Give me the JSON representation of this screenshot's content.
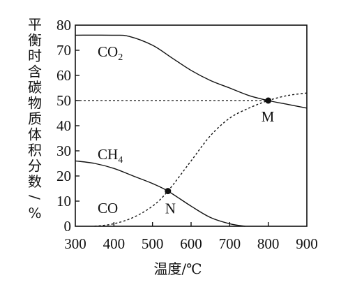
{
  "chart_data": {
    "type": "line",
    "xlabel": "温度/℃",
    "ylabel": "平衡时含碳物质体积分数/%",
    "xlim": [
      300,
      900
    ],
    "ylim": [
      0,
      80
    ],
    "x_ticks": [
      "300",
      "400",
      "500",
      "600",
      "700",
      "800",
      "900"
    ],
    "y_ticks": [
      "0",
      "10",
      "20",
      "30",
      "40",
      "50",
      "60",
      "70",
      "80"
    ],
    "grid": false,
    "series": [
      {
        "name": "CO2",
        "style": "solid",
        "x": [
          300,
          400,
          440,
          500,
          550,
          600,
          650,
          700,
          750,
          800,
          850,
          900
        ],
        "y": [
          76,
          76,
          75.5,
          72,
          67,
          62,
          58,
          55,
          52,
          50,
          48.5,
          47
        ]
      },
      {
        "name": "CH4",
        "style": "solid",
        "x": [
          300,
          350,
          400,
          450,
          500,
          540,
          600,
          650,
          700,
          740
        ],
        "y": [
          26,
          25,
          23,
          20,
          17,
          14,
          8,
          3.5,
          1,
          0
        ]
      },
      {
        "name": "CO",
        "style": "dashed",
        "x": [
          350,
          400,
          450,
          500,
          540,
          600,
          650,
          700,
          750,
          800,
          850,
          900
        ],
        "y": [
          0,
          1,
          3.5,
          8,
          14,
          26,
          36,
          43,
          47,
          50,
          52,
          53
        ]
      }
    ],
    "reference_line": {
      "y": 50,
      "style": "dashed",
      "x_range": [
        300,
        800
      ]
    },
    "points": [
      {
        "label": "M",
        "x": 800,
        "y": 50
      },
      {
        "label": "N",
        "x": 540,
        "y": 14
      }
    ],
    "series_labels": {
      "CO2": {
        "base": "CO",
        "sub": "2"
      },
      "CH4": {
        "base": "CH",
        "sub": "4"
      },
      "CO": {
        "base": "CO",
        "sub": ""
      }
    }
  }
}
